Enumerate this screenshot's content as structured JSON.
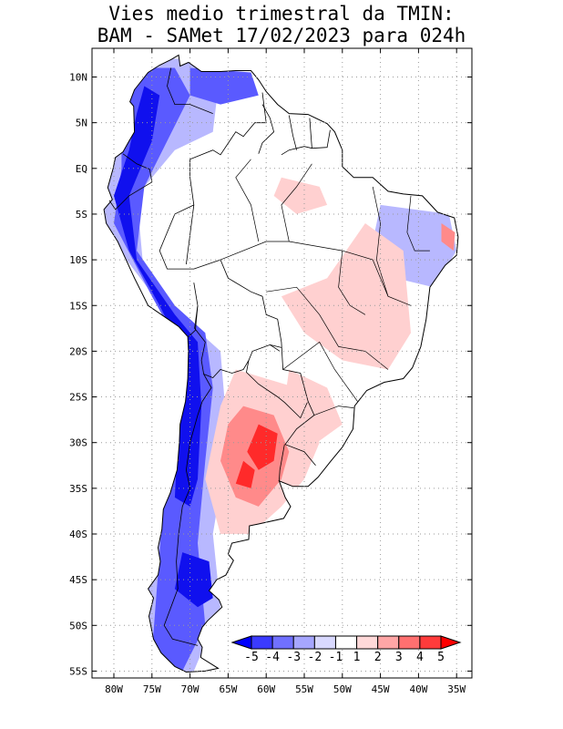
{
  "title": {
    "line1": "Vies medio trimestral da TMIN:",
    "line2": "BAM - SAMet 17/02/2023  para 024h"
  },
  "map": {
    "region": "South America",
    "lon_range": [
      -83,
      -35
    ],
    "lat_range": [
      -56,
      13
    ],
    "lat_ticks": [
      "10N",
      "5N",
      "EQ",
      "5S",
      "10S",
      "15S",
      "20S",
      "25S",
      "30S",
      "35S",
      "40S",
      "45S",
      "50S",
      "55S"
    ],
    "lon_ticks": [
      "80W",
      "75W",
      "70W",
      "65W",
      "60W",
      "55W",
      "50W",
      "45W",
      "40W",
      "35W"
    ],
    "gridlines": "dotted"
  },
  "colorbar": {
    "labels": [
      "-5",
      "-4",
      "-3",
      "-2",
      "-1",
      "1",
      "2",
      "3",
      "4",
      "5"
    ],
    "colors": [
      "#0000ff",
      "#3b3bff",
      "#7070ff",
      "#a6a6ff",
      "#d9d9ff",
      "#ffffff",
      "#ffd9d9",
      "#ffa6a6",
      "#ff7070",
      "#ff3b3b",
      "#ff0000"
    ]
  },
  "colors": {
    "cold_strong": "#1010ee",
    "cold_medium": "#5a5aff",
    "cold_light": "#b8b8ff",
    "warm_light": "#ffd0d0",
    "warm_medium": "#ff8a8a",
    "warm_strong": "#ff2a2a"
  }
}
